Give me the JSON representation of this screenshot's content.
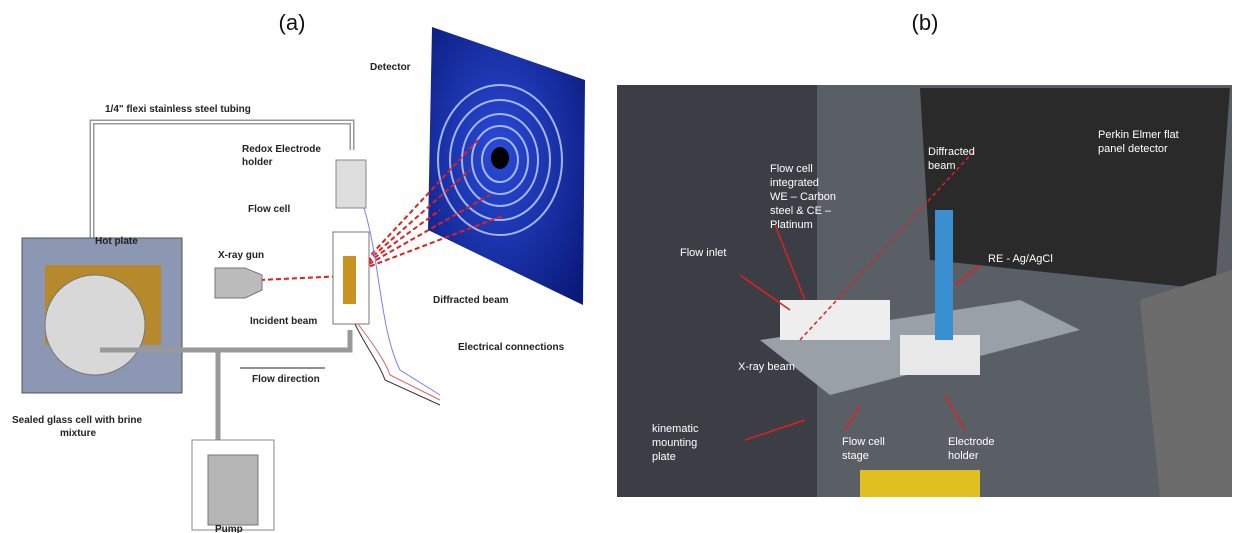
{
  "panel_a": {
    "label": "(a)",
    "detector": "Detector",
    "tubing": "1/4\" flexi stainless steel tubing",
    "redox_holder": [
      "Redox Electrode",
      "holder"
    ],
    "flow_cell": "Flow cell",
    "hot_plate": "Hot plate",
    "xray_gun": "X-ray gun",
    "incident_beam": "Incident beam",
    "diffracted_beam": "Diffracted beam",
    "electrical": "Electrical connections",
    "flow_direction": "Flow direction",
    "sealed_cell": [
      "Sealed glass cell with brine",
      "mixture"
    ],
    "pump": "Pump"
  },
  "panel_b": {
    "label": "(b)",
    "detector": [
      "Perkin Elmer flat",
      "panel detector"
    ],
    "diffracted_beam": [
      "Diffracted",
      "beam"
    ],
    "flow_cell": [
      "Flow cell",
      "integrated",
      "WE – Carbon",
      "steel & CE –",
      "Platinum"
    ],
    "flow_inlet": "Flow inlet",
    "reference": "RE - Ag/AgCl",
    "xray_beam": "X-ray beam",
    "mounting_plate": [
      "kinematic",
      "mounting",
      "plate"
    ],
    "stage": [
      "Flow cell",
      "stage"
    ],
    "electrode_holder": [
      "Electrode",
      "holder"
    ]
  }
}
